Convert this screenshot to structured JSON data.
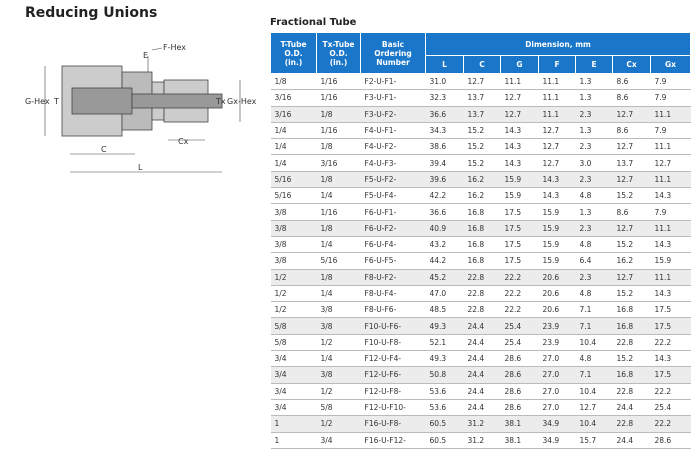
{
  "header": {
    "title": "Reducing Unions"
  },
  "diagram": {
    "labels": {
      "f_hex": "F-Hex",
      "e": "E",
      "g_hex": "G-Hex",
      "t": "T",
      "tx": "Tx",
      "gx_hex": "Gx-Hex",
      "c": "C",
      "cx": "Cx",
      "l": "L"
    }
  },
  "table": {
    "caption": "Fractional Tube",
    "columns": [
      "T-Tube\nO.D.\n(in.)",
      "Tx-Tube\nO.D.\n(in.)",
      "Basic\nOrdering\nNumber"
    ],
    "group": "Dimension, mm",
    "subcolumns": [
      "L",
      "C",
      "G",
      "F",
      "E",
      "Cx",
      "Gx"
    ],
    "rows": [
      [
        "1/8",
        "1/16",
        "F2-U-F1-",
        "31.0",
        "12.7",
        "11.1",
        "11.1",
        "1.3",
        "8.6",
        "7.9"
      ],
      [
        "3/16",
        "1/16",
        "F3-U-F1-",
        "32.3",
        "13.7",
        "12.7",
        "11.1",
        "1.3",
        "8.6",
        "7.9"
      ],
      [
        "3/16",
        "1/8",
        "F3-U-F2-",
        "36.6",
        "13.7",
        "12.7",
        "11.1",
        "2.3",
        "12.7",
        "11.1"
      ],
      [
        "1/4",
        "1/16",
        "F4-U-F1-",
        "34.3",
        "15.2",
        "14.3",
        "12.7",
        "1.3",
        "8.6",
        "7.9"
      ],
      [
        "1/4",
        "1/8",
        "F4-U-F2-",
        "38.6",
        "15.2",
        "14.3",
        "12.7",
        "2.3",
        "12.7",
        "11.1"
      ],
      [
        "1/4",
        "3/16",
        "F4-U-F3-",
        "39.4",
        "15.2",
        "14.3",
        "12.7",
        "3.0",
        "13.7",
        "12.7"
      ],
      [
        "5/16",
        "1/8",
        "F5-U-F2-",
        "39.6",
        "16.2",
        "15.9",
        "14.3",
        "2.3",
        "12.7",
        "11.1"
      ],
      [
        "5/16",
        "1/4",
        "F5-U-F4-",
        "42.2",
        "16.2",
        "15.9",
        "14.3",
        "4.8",
        "15.2",
        "14.3"
      ],
      [
        "3/8",
        "1/16",
        "F6-U-F1-",
        "36.6",
        "16.8",
        "17.5",
        "15.9",
        "1.3",
        "8.6",
        "7.9"
      ],
      [
        "3/8",
        "1/8",
        "F6-U-F2-",
        "40.9",
        "16.8",
        "17.5",
        "15.9",
        "2.3",
        "12.7",
        "11.1"
      ],
      [
        "3/8",
        "1/4",
        "F6-U-F4-",
        "43.2",
        "16.8",
        "17.5",
        "15.9",
        "4.8",
        "15.2",
        "14.3"
      ],
      [
        "3/8",
        "5/16",
        "F6-U-F5-",
        "44.2",
        "16.8",
        "17.5",
        "15.9",
        "6.4",
        "16.2",
        "15.9"
      ],
      [
        "1/2",
        "1/8",
        "F8-U-F2-",
        "45.2",
        "22.8",
        "22.2",
        "20.6",
        "2.3",
        "12.7",
        "11.1"
      ],
      [
        "1/2",
        "1/4",
        "F8-U-F4-",
        "47.0",
        "22.8",
        "22.2",
        "20.6",
        "4.8",
        "15.2",
        "14.3"
      ],
      [
        "1/2",
        "3/8",
        "F8-U-F6-",
        "48.5",
        "22.8",
        "22.2",
        "20.6",
        "7.1",
        "16.8",
        "17.5"
      ],
      [
        "5/8",
        "3/8",
        "F10-U-F6-",
        "49.3",
        "24.4",
        "25.4",
        "23.9",
        "7.1",
        "16.8",
        "17.5"
      ],
      [
        "5/8",
        "1/2",
        "F10-U-F8-",
        "52.1",
        "24.4",
        "25.4",
        "23.9",
        "10.4",
        "22.8",
        "22.2"
      ],
      [
        "3/4",
        "1/4",
        "F12-U-F4-",
        "49.3",
        "24.4",
        "28.6",
        "27.0",
        "4.8",
        "15.2",
        "14.3"
      ],
      [
        "3/4",
        "3/8",
        "F12-U-F6-",
        "50.8",
        "24.4",
        "28.6",
        "27.0",
        "7.1",
        "16.8",
        "17.5"
      ],
      [
        "3/4",
        "1/2",
        "F12-U-F8-",
        "53.6",
        "24.4",
        "28.6",
        "27.0",
        "10.4",
        "22.8",
        "22.2"
      ],
      [
        "3/4",
        "5/8",
        "F12-U-F10-",
        "53.6",
        "24.4",
        "28.6",
        "27.0",
        "12.7",
        "24.4",
        "25.4"
      ],
      [
        "1",
        "1/2",
        "F16-U-F8-",
        "60.5",
        "31.2",
        "38.1",
        "34.9",
        "10.4",
        "22.8",
        "22.2"
      ],
      [
        "1",
        "3/4",
        "F16-U-F12-",
        "60.5",
        "31.2",
        "38.1",
        "34.9",
        "15.7",
        "24.4",
        "28.6"
      ]
    ]
  }
}
